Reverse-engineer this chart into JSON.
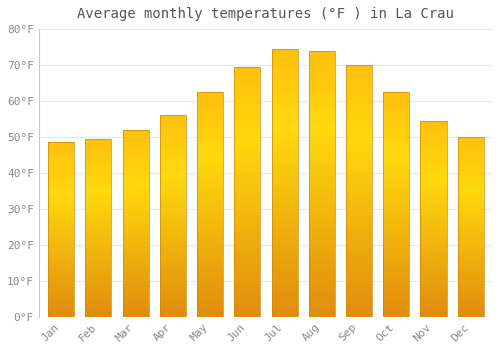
{
  "title": "Average monthly temperatures (°F ) in La Crau",
  "months": [
    "Jan",
    "Feb",
    "Mar",
    "Apr",
    "May",
    "Jun",
    "Jul",
    "Aug",
    "Sep",
    "Oct",
    "Nov",
    "Dec"
  ],
  "values": [
    48.5,
    49.5,
    52,
    56,
    62.5,
    69.5,
    74.5,
    74,
    70,
    62.5,
    54.5,
    50
  ],
  "bar_color_main": "#F5A623",
  "bar_color_light": "#FFD966",
  "bar_edge_color": "#D4880A",
  "ylim": [
    0,
    80
  ],
  "yticks": [
    0,
    10,
    20,
    30,
    40,
    50,
    60,
    70,
    80
  ],
  "ytick_labels": [
    "0°F",
    "10°F",
    "20°F",
    "30°F",
    "40°F",
    "50°F",
    "60°F",
    "70°F",
    "80°F"
  ],
  "background_color": "#FFFFFF",
  "grid_color": "#E8E8E8",
  "title_fontsize": 10,
  "tick_fontsize": 8,
  "font_color": "#888888",
  "title_color": "#555555"
}
